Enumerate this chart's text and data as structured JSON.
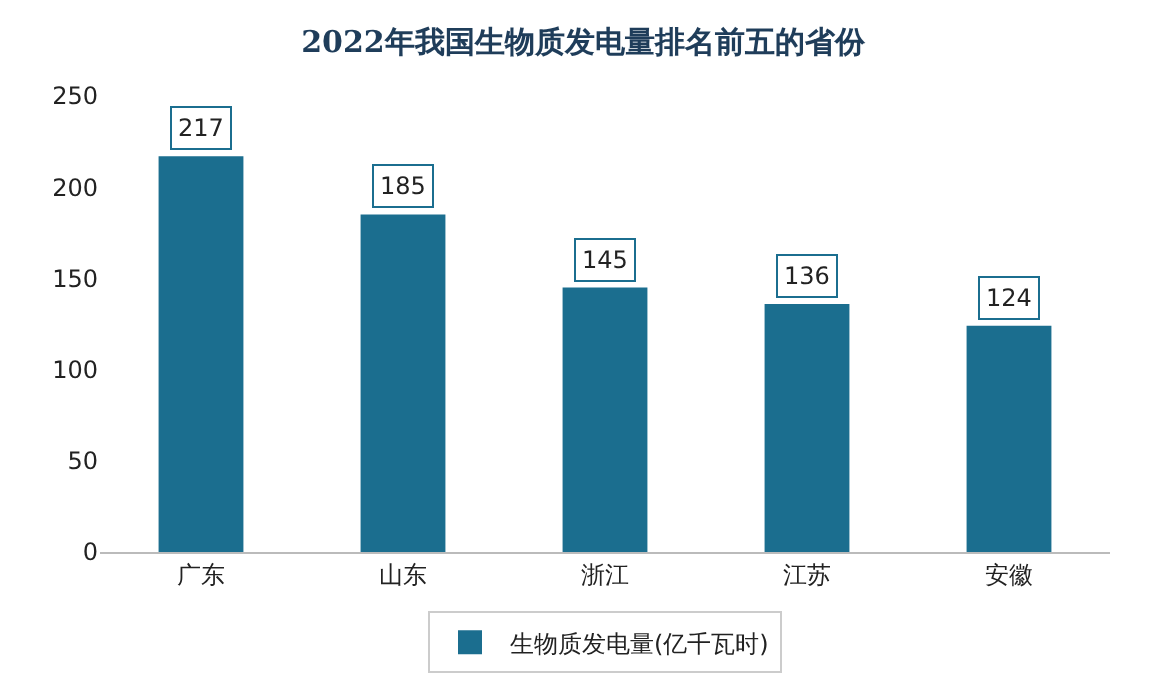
{
  "chart_data": {
    "type": "bar",
    "title": "2022年我国生物质发电量排名前五的省份",
    "categories": [
      "广东",
      "山东",
      "浙江",
      "江苏",
      "安徽"
    ],
    "series": [
      {
        "name": "生物质发电量(亿千瓦时)",
        "color": "#1b6e8f",
        "values": [
          217,
          185,
          145,
          136,
          124
        ]
      }
    ],
    "ylim": [
      0,
      250
    ],
    "yticks": [
      0,
      50,
      100,
      150,
      200,
      250
    ],
    "grid": false,
    "legend": "bottom",
    "data_labels": true
  }
}
